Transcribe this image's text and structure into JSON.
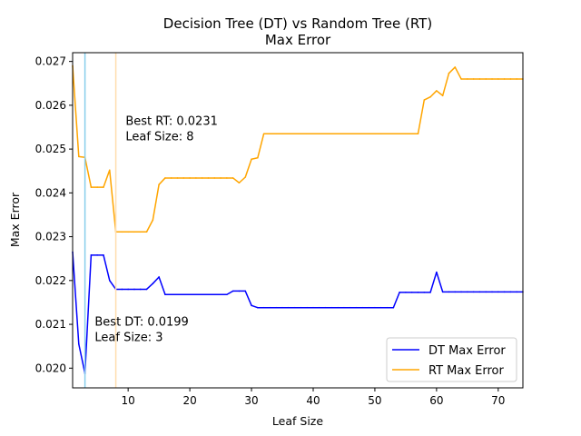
{
  "chart_data": {
    "type": "line",
    "title": "Decision Tree (DT) vs Random Tree (RT)",
    "subtitle": "Max Error",
    "xlabel": "Leaf Size",
    "ylabel": "Max Error",
    "xlim": [
      1,
      74
    ],
    "ylim": [
      0.01955,
      0.0272
    ],
    "xticks": [
      10,
      20,
      30,
      40,
      50,
      60,
      70
    ],
    "yticks": [
      0.02,
      0.021,
      0.022,
      0.023,
      0.024,
      0.025,
      0.026,
      0.027
    ],
    "ytick_labels": [
      "0.020",
      "0.021",
      "0.022",
      "0.023",
      "0.024",
      "0.025",
      "0.026",
      "0.027"
    ],
    "grid": false,
    "legend_position": "lower-right",
    "series": [
      {
        "name": "DT Max Error",
        "color": "#0000ff",
        "x": [
          1,
          2,
          3,
          4,
          5,
          6,
          7,
          8,
          9,
          10,
          11,
          12,
          13,
          14,
          15,
          16,
          17,
          18,
          19,
          20,
          21,
          22,
          23,
          24,
          25,
          26,
          27,
          28,
          29,
          30,
          31,
          32,
          33,
          34,
          35,
          36,
          37,
          38,
          39,
          40,
          41,
          42,
          43,
          44,
          45,
          46,
          47,
          48,
          49,
          50,
          51,
          52,
          53,
          54,
          55,
          56,
          57,
          58,
          59,
          60,
          61,
          62,
          63,
          64,
          65,
          66,
          67,
          68,
          69,
          70,
          71,
          72,
          73,
          74
        ],
        "values": [
          0.02265,
          0.02055,
          0.01988,
          0.02258,
          0.02258,
          0.02258,
          0.022,
          0.0218,
          0.0218,
          0.0218,
          0.0218,
          0.0218,
          0.0218,
          0.02193,
          0.02208,
          0.02168,
          0.02168,
          0.02168,
          0.02168,
          0.02168,
          0.02168,
          0.02168,
          0.02168,
          0.02168,
          0.02168,
          0.02168,
          0.02176,
          0.02176,
          0.02176,
          0.02143,
          0.02138,
          0.02138,
          0.02138,
          0.02138,
          0.02138,
          0.02138,
          0.02138,
          0.02138,
          0.02138,
          0.02138,
          0.02138,
          0.02138,
          0.02138,
          0.02138,
          0.02138,
          0.02138,
          0.02138,
          0.02138,
          0.02138,
          0.02138,
          0.02138,
          0.02138,
          0.02138,
          0.02173,
          0.02173,
          0.02173,
          0.02173,
          0.02173,
          0.02173,
          0.02219,
          0.02174,
          0.02174,
          0.02174,
          0.02174,
          0.02174,
          0.02174,
          0.02174,
          0.02174,
          0.02174,
          0.02174,
          0.02174,
          0.02174,
          0.02174,
          0.02174
        ]
      },
      {
        "name": "RT Max Error",
        "color": "#ffa500",
        "x": [
          1,
          2,
          3,
          4,
          5,
          6,
          7,
          8,
          9,
          10,
          11,
          12,
          13,
          14,
          15,
          16,
          17,
          18,
          19,
          20,
          21,
          22,
          23,
          24,
          25,
          26,
          27,
          28,
          29,
          30,
          31,
          32,
          33,
          34,
          35,
          36,
          37,
          38,
          39,
          40,
          41,
          42,
          43,
          44,
          45,
          46,
          47,
          48,
          49,
          50,
          51,
          52,
          53,
          54,
          55,
          56,
          57,
          58,
          59,
          60,
          61,
          62,
          63,
          64,
          65,
          66,
          67,
          68,
          69,
          70,
          71,
          72,
          73,
          74
        ],
        "values": [
          0.0269,
          0.02483,
          0.02481,
          0.02413,
          0.02413,
          0.02413,
          0.02452,
          0.02311,
          0.02311,
          0.02311,
          0.02311,
          0.02311,
          0.02311,
          0.02338,
          0.02419,
          0.02434,
          0.02434,
          0.02434,
          0.02434,
          0.02434,
          0.02434,
          0.02434,
          0.02434,
          0.02434,
          0.02434,
          0.02434,
          0.02434,
          0.02423,
          0.02436,
          0.02477,
          0.0248,
          0.02535,
          0.02535,
          0.02535,
          0.02535,
          0.02535,
          0.02535,
          0.02535,
          0.02535,
          0.02535,
          0.02535,
          0.02535,
          0.02535,
          0.02535,
          0.02535,
          0.02535,
          0.02535,
          0.02535,
          0.02535,
          0.02535,
          0.02535,
          0.02535,
          0.02535,
          0.02535,
          0.02535,
          0.02535,
          0.02535,
          0.02612,
          0.02619,
          0.02633,
          0.02622,
          0.02673,
          0.02687,
          0.0266,
          0.0266,
          0.0266,
          0.0266,
          0.0266,
          0.0266,
          0.0266,
          0.0266,
          0.0266,
          0.0266,
          0.0266
        ]
      }
    ],
    "vlines": [
      {
        "x": 3,
        "color": "#87ceeb"
      },
      {
        "x": 8,
        "color": "#ffdead"
      }
    ],
    "annotations": [
      {
        "lines": [
          "Best RT: 0.0231",
          "Leaf Size: 8"
        ],
        "x": 9,
        "y": 0.02555
      },
      {
        "lines": [
          "Best DT: 0.0199",
          "Leaf Size: 3"
        ],
        "x": 4,
        "y": 0.02097
      }
    ]
  }
}
